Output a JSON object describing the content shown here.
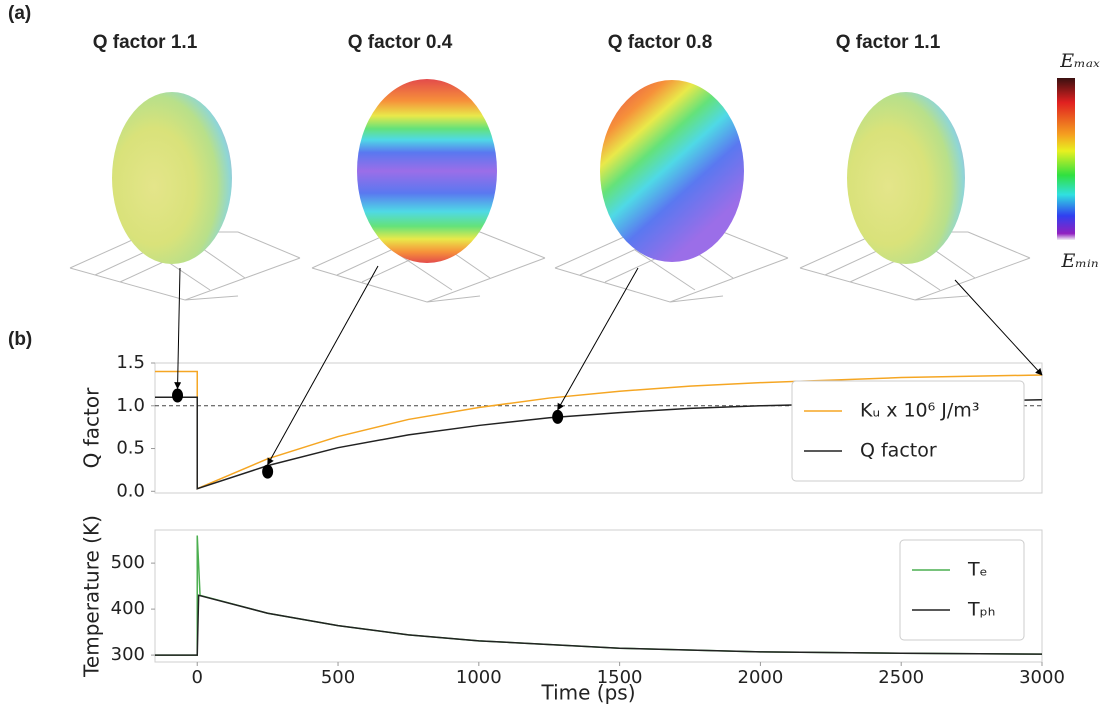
{
  "panel_labels": [
    "(a)",
    "(b)"
  ],
  "spheres": [
    {
      "title": "Q factor 1.1"
    },
    {
      "title": "Q factor 0.4"
    },
    {
      "title": "Q factor 0.8"
    },
    {
      "title": "Q factor 1.1"
    }
  ],
  "colorbar": {
    "max_label": "Eₘₐₓ",
    "min_label": "Eₘᵢₙ"
  },
  "chart_data": [
    {
      "type": "line",
      "ylabel": "Q factor",
      "xlim": [
        -150,
        3000
      ],
      "ylim": [
        -0.02,
        1.5
      ],
      "yticks": [
        {
          "value": 0,
          "label": "0.0"
        },
        {
          "value": 0.5,
          "label": "0.5"
        },
        {
          "value": 1,
          "label": "1.0"
        },
        {
          "value": 1.5,
          "label": "1.5"
        }
      ],
      "hline": 1,
      "legend": "lower right",
      "series": [
        {
          "name": "Kᵤ x 10⁶ J/m³",
          "color": "#f5a623",
          "x": [
            -150,
            0,
            0,
            250,
            500,
            750,
            1000,
            1250,
            1500,
            1750,
            2000,
            2500,
            3000
          ],
          "values": [
            1.4,
            1.4,
            0.03,
            0.38,
            0.64,
            0.84,
            0.98,
            1.09,
            1.17,
            1.23,
            1.27,
            1.33,
            1.36
          ]
        },
        {
          "name": "Q factor",
          "color": "#222222",
          "x": [
            -150,
            0,
            0,
            250,
            500,
            750,
            1000,
            1250,
            1500,
            1750,
            2000,
            2500,
            3000
          ],
          "values": [
            1.1,
            1.1,
            0.03,
            0.3,
            0.51,
            0.66,
            0.77,
            0.86,
            0.92,
            0.97,
            1.0,
            1.04,
            1.07
          ]
        }
      ],
      "markers": {
        "color": "#000000",
        "x": [
          -70,
          250,
          1280
        ],
        "values": [
          1.12,
          0.23,
          0.87
        ]
      }
    },
    {
      "type": "line",
      "xlabel": "Time (ps)",
      "ylabel": "Temperature (K)",
      "xlim": [
        -150,
        3000
      ],
      "ylim": [
        285,
        572
      ],
      "xticks": [
        0,
        500,
        1000,
        1500,
        2000,
        2500,
        3000
      ],
      "yticks": [
        300,
        400,
        500
      ],
      "legend": "upper right",
      "series": [
        {
          "name": "Tₑ",
          "color": "#4caf50",
          "x": [
            -150,
            0,
            0,
            10,
            250,
            500,
            750,
            1000,
            1500,
            2000,
            2500,
            3000
          ],
          "values": [
            300,
            300,
            560,
            430,
            391,
            364,
            344,
            331,
            315,
            307,
            304,
            302
          ]
        },
        {
          "name": "Tₚₕ",
          "color": "#222222",
          "x": [
            -150,
            0,
            5,
            250,
            500,
            750,
            1000,
            1500,
            2000,
            2500,
            3000
          ],
          "values": [
            300,
            300,
            430,
            391,
            364,
            344,
            331,
            315,
            307,
            304,
            302
          ]
        }
      ]
    }
  ]
}
